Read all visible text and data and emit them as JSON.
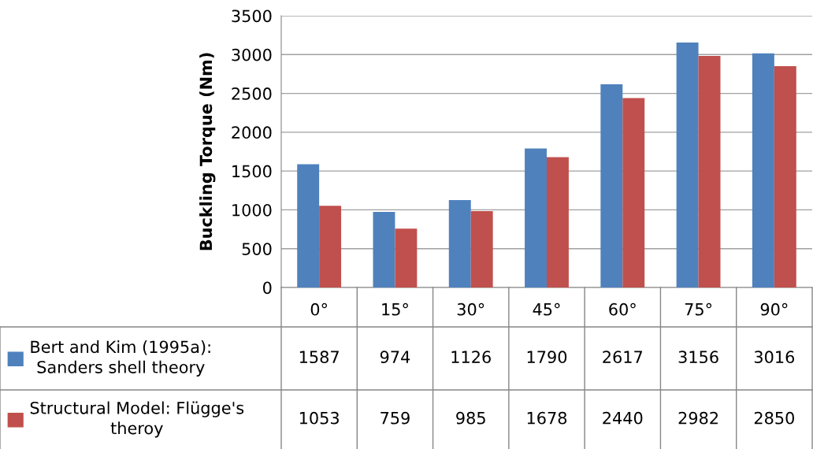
{
  "chart_data": {
    "type": "bar",
    "ylabel": "Buckling Torque (Nm)",
    "categories": [
      "0°",
      "15°",
      "30°",
      "45°",
      "60°",
      "75°",
      "90°"
    ],
    "series": [
      {
        "name": "Bert and Kim (1995a):\nSanders shell theory",
        "color": "#4f81bd",
        "values": [
          1587,
          974,
          1126,
          1790,
          2617,
          3156,
          3016
        ]
      },
      {
        "name": "Structural Model: Flügge's\ntheroy",
        "color": "#c0504d",
        "values": [
          1053,
          759,
          985,
          1678,
          2440,
          2982,
          2850
        ]
      }
    ],
    "ylim": [
      0,
      3500
    ],
    "yticks": [
      0,
      500,
      1000,
      1500,
      2000,
      2500,
      3000,
      3500
    ],
    "grid": "y",
    "data_labels": true,
    "legend": "bottom left"
  }
}
